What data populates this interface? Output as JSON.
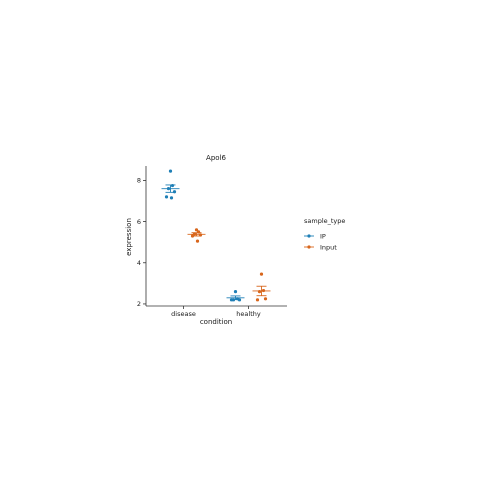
{
  "chart_data": {
    "type": "scatter",
    "title": "Apol6",
    "xlabel": "condition",
    "ylabel": "expression",
    "categories": [
      "disease",
      "healthy"
    ],
    "ylim": [
      1.9,
      8.7
    ],
    "yticks": [
      2,
      4,
      6,
      8
    ],
    "grid": false,
    "legend": {
      "title": "sample_type",
      "placement": "right"
    },
    "series": [
      {
        "name": "IP",
        "color": "#1f7fb6",
        "points": {
          "disease": [
            8.45,
            7.75,
            7.6,
            7.45,
            7.2,
            7.15
          ],
          "healthy": [
            2.6,
            2.25,
            2.2,
            2.2,
            2.2
          ]
        },
        "mean": {
          "disease": 7.6,
          "healthy": 2.3
        },
        "se": {
          "disease": 0.18,
          "healthy": 0.09
        }
      },
      {
        "name": "Input",
        "color": "#d8661c",
        "points": {
          "disease": [
            5.6,
            5.5,
            5.4,
            5.35,
            5.3,
            5.05
          ],
          "healthy": [
            3.45,
            2.65,
            2.6,
            2.25,
            2.2
          ]
        },
        "mean": {
          "disease": 5.38,
          "healthy": 2.63
        },
        "se": {
          "disease": 0.08,
          "healthy": 0.23
        }
      }
    ]
  }
}
